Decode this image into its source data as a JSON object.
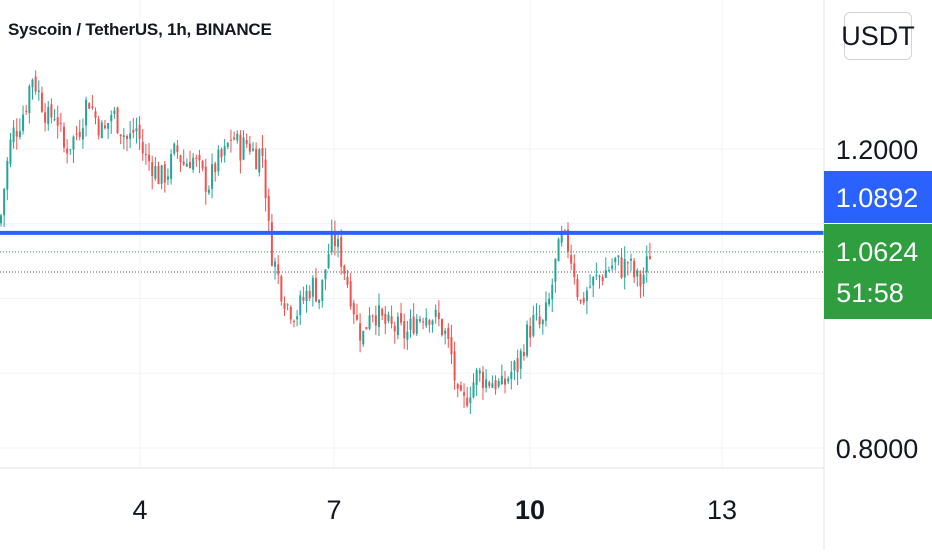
{
  "header": {
    "title": "Syscoin / TetherUS, 1h, BINANCE",
    "currency": "USDT"
  },
  "colors": {
    "up": "#26a69a",
    "down": "#ef5350",
    "level_line": "#2962ff",
    "price_label_bg": "#2e9e3f",
    "level_label_bg": "#2962ff",
    "grid": "#f0f3fa",
    "axis_text": "#131722"
  },
  "chart_data": {
    "type": "candlestick",
    "title": "Syscoin / TetherUS, 1h, BINANCE",
    "currency": "USDT",
    "x_tick_labels": [
      "4",
      "7",
      "10",
      "13"
    ],
    "x_tick_bold": [
      "10"
    ],
    "y_tick_labels": [
      "1.2000",
      "0.8000"
    ],
    "ylim": [
      0.78,
      1.34
    ],
    "grid": true,
    "horizontal_level": {
      "price": 1.0892,
      "label": "1.0892"
    },
    "last_price": {
      "price": 1.0624,
      "label": "1.0624",
      "countdown": "51:58"
    },
    "dotted_level": 1.0355,
    "close_path": [
      [
        0,
        1.1
      ],
      [
        6,
        1.17
      ],
      [
        12,
        1.22
      ],
      [
        18,
        1.23
      ],
      [
        26,
        1.26
      ],
      [
        32,
        1.3
      ],
      [
        40,
        1.27
      ],
      [
        48,
        1.24
      ],
      [
        56,
        1.25
      ],
      [
        64,
        1.2
      ],
      [
        72,
        1.21
      ],
      [
        80,
        1.23
      ],
      [
        88,
        1.27
      ],
      [
        96,
        1.24
      ],
      [
        104,
        1.22
      ],
      [
        112,
        1.25
      ],
      [
        120,
        1.23
      ],
      [
        128,
        1.21
      ],
      [
        136,
        1.23
      ],
      [
        144,
        1.19
      ],
      [
        152,
        1.18
      ],
      [
        160,
        1.16
      ],
      [
        168,
        1.17
      ],
      [
        176,
        1.2
      ],
      [
        184,
        1.18
      ],
      [
        192,
        1.19
      ],
      [
        200,
        1.17
      ],
      [
        208,
        1.15
      ],
      [
        216,
        1.18
      ],
      [
        224,
        1.19
      ],
      [
        232,
        1.22
      ],
      [
        240,
        1.2
      ],
      [
        248,
        1.21
      ],
      [
        256,
        1.19
      ],
      [
        262,
        1.2
      ],
      [
        266,
        1.14
      ],
      [
        270,
        1.07
      ],
      [
        276,
        1.04
      ],
      [
        282,
        1.01
      ],
      [
        288,
        0.99
      ],
      [
        296,
        0.98
      ],
      [
        304,
        1.0
      ],
      [
        312,
        1.02
      ],
      [
        320,
        1.0
      ],
      [
        328,
        1.06
      ],
      [
        334,
        1.08
      ],
      [
        340,
        1.06
      ],
      [
        346,
        1.03
      ],
      [
        352,
        1.0
      ],
      [
        358,
        0.96
      ],
      [
        364,
        0.95
      ],
      [
        370,
        0.99
      ],
      [
        376,
        0.98
      ],
      [
        382,
        0.97
      ],
      [
        390,
        0.96
      ],
      [
        398,
        0.96
      ],
      [
        406,
        0.95
      ],
      [
        414,
        0.97
      ],
      [
        422,
        0.98
      ],
      [
        430,
        0.98
      ],
      [
        438,
        0.97
      ],
      [
        446,
        0.95
      ],
      [
        452,
        0.92
      ],
      [
        458,
        0.86
      ],
      [
        464,
        0.86
      ],
      [
        470,
        0.88
      ],
      [
        478,
        0.9
      ],
      [
        486,
        0.89
      ],
      [
        494,
        0.89
      ],
      [
        502,
        0.88
      ],
      [
        510,
        0.9
      ],
      [
        518,
        0.91
      ],
      [
        526,
        0.95
      ],
      [
        534,
        0.97
      ],
      [
        542,
        0.96
      ],
      [
        550,
        1.0
      ],
      [
        556,
        1.05
      ],
      [
        562,
        1.08
      ],
      [
        568,
        1.07
      ],
      [
        574,
        1.04
      ],
      [
        580,
        0.99
      ],
      [
        586,
        1.01
      ],
      [
        592,
        1.02
      ],
      [
        600,
        1.03
      ],
      [
        608,
        1.04
      ],
      [
        616,
        1.05
      ],
      [
        622,
        1.04
      ],
      [
        628,
        1.05
      ],
      [
        634,
        1.03
      ],
      [
        640,
        1.02
      ],
      [
        646,
        1.04
      ],
      [
        650,
        1.0624
      ]
    ]
  }
}
